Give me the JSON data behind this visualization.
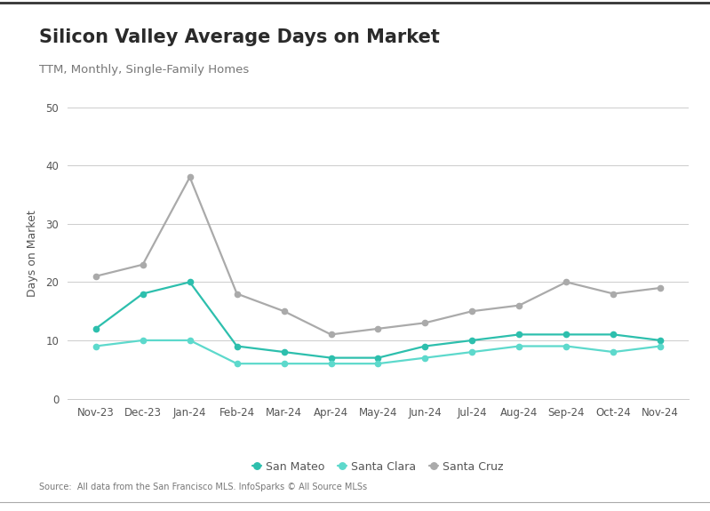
{
  "title": "Silicon Valley Average Days on Market",
  "subtitle": "TTM, Monthly, Single-Family Homes",
  "ylabel": "Days on Market",
  "source": "Source:  All data from the San Francisco MLS. InfoSparks © All Source MLSs",
  "months": [
    "Nov-23",
    "Dec-23",
    "Jan-24",
    "Feb-24",
    "Mar-24",
    "Apr-24",
    "May-24",
    "Jun-24",
    "Jul-24",
    "Aug-24",
    "Sep-24",
    "Oct-24",
    "Nov-24"
  ],
  "san_mateo": [
    12,
    18,
    20,
    9,
    8,
    7,
    7,
    9,
    10,
    11,
    11,
    11,
    10
  ],
  "santa_clara": [
    9,
    10,
    10,
    6,
    6,
    6,
    6,
    7,
    8,
    9,
    9,
    8,
    9
  ],
  "santa_cruz": [
    21,
    23,
    38,
    18,
    15,
    11,
    12,
    13,
    15,
    16,
    20,
    18,
    19
  ],
  "san_mateo_color": "#2dbfad",
  "santa_clara_color": "#5dd9cc",
  "santa_cruz_color": "#aaaaaa",
  "ylim": [
    0,
    50
  ],
  "yticks": [
    0,
    10,
    20,
    30,
    40,
    50
  ],
  "background_color": "#ffffff",
  "grid_color": "#cccccc",
  "border_color": "#555555",
  "title_fontsize": 15,
  "subtitle_fontsize": 9.5,
  "axis_label_fontsize": 9,
  "tick_fontsize": 8.5,
  "legend_fontsize": 9,
  "source_fontsize": 7
}
